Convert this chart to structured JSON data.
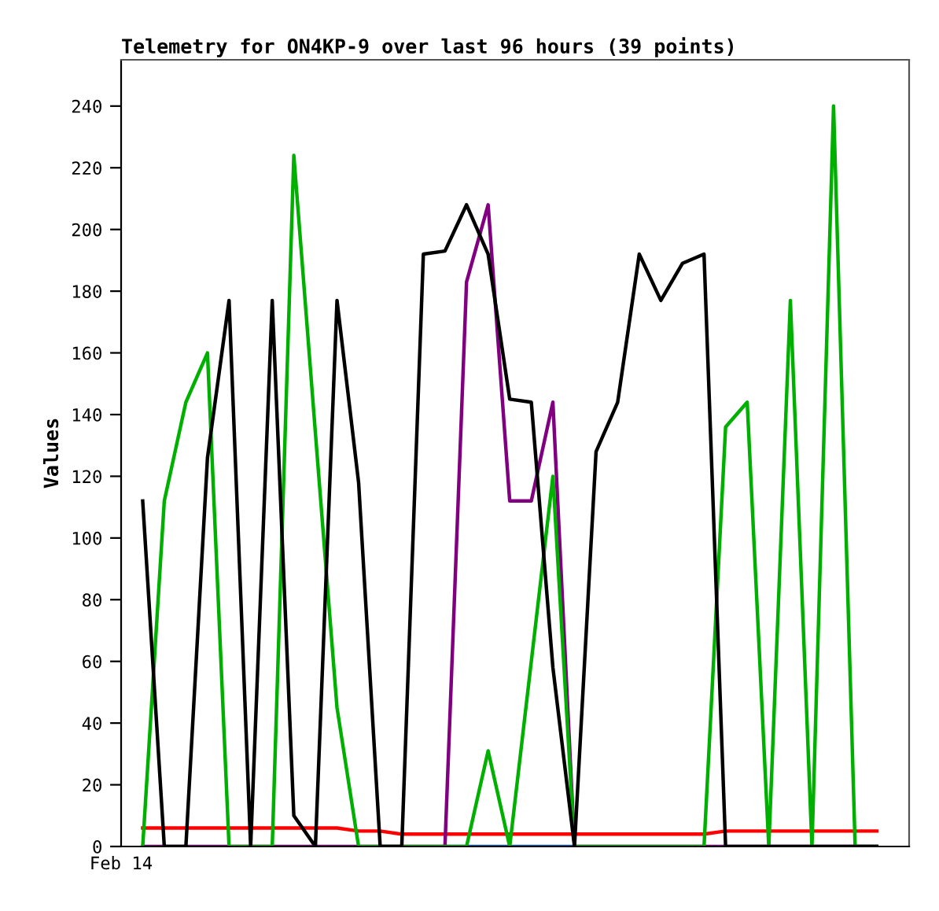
{
  "chart_data": {
    "type": "line",
    "title": "Telemetry for ON4KP-9 over last 96 hours (39 points)",
    "ylabel": "Values",
    "annotations": [
      "Feb 14"
    ],
    "categories": [
      null,
      null,
      null,
      null,
      null,
      null,
      null,
      null,
      null,
      null,
      null,
      null,
      null,
      null,
      null,
      null,
      null,
      null,
      null,
      null,
      null,
      null,
      null,
      null,
      null,
      null,
      null,
      null,
      null,
      null,
      null,
      null,
      null,
      null,
      null
    ],
    "ylim": [
      0,
      255
    ],
    "yticks": [
      0,
      20,
      40,
      60,
      80,
      100,
      120,
      140,
      160,
      180,
      200,
      220,
      240
    ],
    "grid": false,
    "marker": "none",
    "line_style": "solid",
    "series": [
      {
        "color": "#ff0000",
        "values": [
          6,
          6,
          6,
          6,
          6,
          6,
          6,
          6,
          6,
          6,
          5,
          5,
          4,
          4,
          4,
          4,
          4,
          4,
          4,
          4,
          4,
          4,
          4,
          4,
          4,
          4,
          4,
          5,
          5,
          5,
          5,
          5,
          5,
          5,
          5
        ]
      },
      {
        "color": "#0066cc",
        "values": [
          null,
          null,
          null,
          null,
          null,
          null,
          null,
          null,
          null,
          null,
          null,
          null,
          null,
          null,
          0,
          0,
          0,
          0,
          0,
          0,
          0,
          null,
          null,
          null,
          null,
          null,
          null,
          null,
          null,
          null,
          null,
          null,
          null,
          null,
          null
        ]
      },
      {
        "color": "#800080",
        "values": [
          0,
          0,
          0,
          0,
          0,
          0,
          0,
          0,
          0,
          0,
          0,
          0,
          0,
          0,
          0,
          183,
          208,
          112,
          112,
          144,
          0,
          0,
          0,
          0,
          0,
          0,
          0,
          0,
          0,
          0,
          0,
          0,
          0,
          0,
          0
        ]
      },
      {
        "color": "#00b000",
        "values": [
          0,
          112,
          144,
          160,
          0,
          0,
          0,
          224,
          134,
          45,
          0,
          0,
          0,
          0,
          0,
          0,
          31,
          0,
          60,
          120,
          0,
          0,
          0,
          0,
          0,
          0,
          0,
          136,
          144,
          0,
          177,
          0,
          240,
          0,
          0
        ]
      },
      {
        "color": "#000000",
        "values": [
          112,
          0,
          0,
          126,
          177,
          0,
          177,
          10,
          0,
          177,
          118,
          0,
          0,
          192,
          193,
          208,
          192,
          145,
          144,
          58,
          0,
          128,
          144,
          192,
          177,
          189,
          192,
          0,
          0,
          0,
          0,
          0,
          0,
          0,
          0
        ]
      }
    ]
  }
}
